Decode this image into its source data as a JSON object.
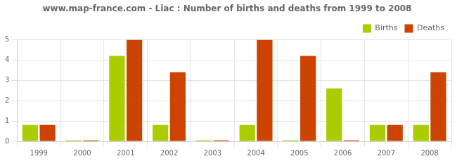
{
  "chart_data": {
    "type": "bar",
    "title": "www.map-france.com - Liac : Number of births and deaths from 1999 to 2008",
    "categories": [
      "1999",
      "2000",
      "2001",
      "2002",
      "2003",
      "2004",
      "2005",
      "2006",
      "2007",
      "2008"
    ],
    "series": [
      {
        "name": "Births",
        "color": "#aacc00",
        "values": [
          0.8,
          0.05,
          4.2,
          0.8,
          0.05,
          0.8,
          0.05,
          2.6,
          0.8,
          0.8
        ]
      },
      {
        "name": "Deaths",
        "color": "#cc4400",
        "values": [
          0.8,
          0.05,
          5.0,
          3.4,
          0.05,
          5.0,
          4.2,
          0.05,
          0.8,
          3.4
        ]
      }
    ],
    "ylim": [
      0,
      5
    ],
    "yticks": [
      0,
      1,
      2,
      3,
      4,
      5
    ],
    "grid": true,
    "legend": "upper right"
  }
}
